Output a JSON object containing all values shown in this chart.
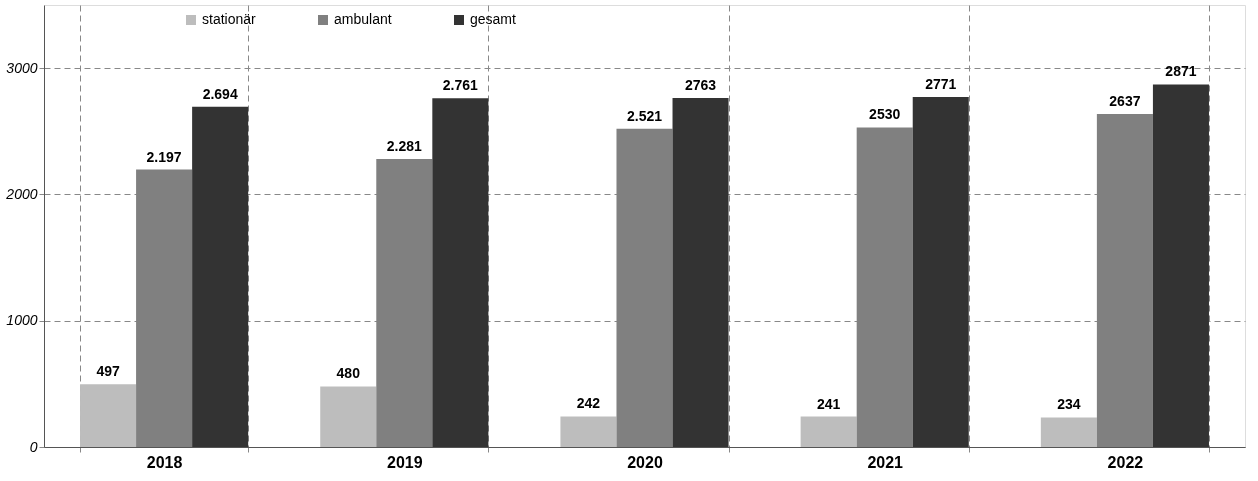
{
  "chart_data": {
    "type": "bar",
    "categories": [
      "2018",
      "2019",
      "2020",
      "2021",
      "2022"
    ],
    "series": [
      {
        "name": "stationär",
        "color": "#bdbdbd",
        "values": [
          497,
          480,
          242,
          241,
          234
        ],
        "value_labels": [
          "497",
          "480",
          "242",
          "241",
          "234"
        ]
      },
      {
        "name": "ambulant",
        "color": "#808080",
        "values": [
          2197,
          2281,
          2521,
          2530,
          2637
        ],
        "value_labels": [
          "2.197",
          "2.281",
          "2.521",
          "2530",
          "2637"
        ]
      },
      {
        "name": "gesamt",
        "color": "#333333",
        "values": [
          2694,
          2761,
          2763,
          2771,
          2871
        ],
        "value_labels": [
          "2.694",
          "2.761",
          "2763",
          "2771",
          "2871"
        ]
      }
    ],
    "ylim": [
      0,
      3500
    ],
    "yticks": [
      0,
      1000,
      2000,
      3000
    ],
    "grid": true,
    "legend": "top left"
  }
}
